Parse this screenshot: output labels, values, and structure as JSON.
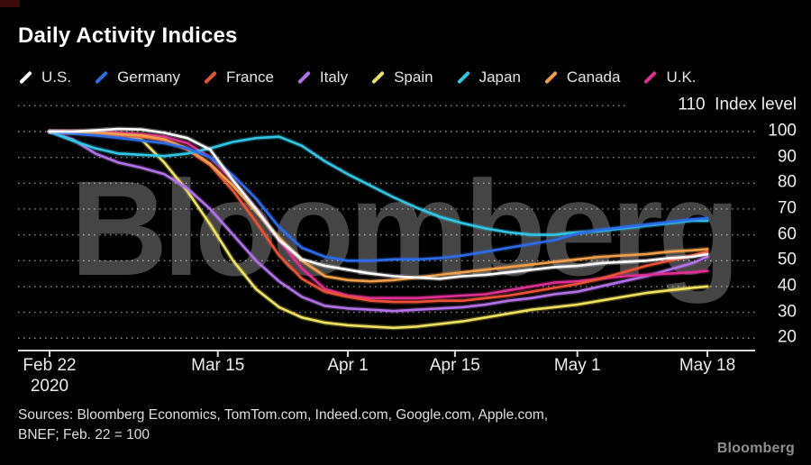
{
  "title": "Daily Activity Indices",
  "watermark": "Bloomberg",
  "brand_logo": "Bloomberg",
  "sources": {
    "line1": "Sources: Bloomberg Economics, TomTom.com, Indeed.com, Google.com, Apple.com,",
    "line2": "BNEF; Feb. 22 = 100"
  },
  "y_axis": {
    "top_tick_value": 110,
    "top_tick_label": "110  Index level",
    "ticks": [
      100,
      90,
      80,
      70,
      60,
      50,
      40,
      30,
      20
    ]
  },
  "x_axis": {
    "ticks": [
      {
        "label": "Feb 22",
        "sublabel": "2020",
        "day": 0
      },
      {
        "label": "Mar 15",
        "day": 22
      },
      {
        "label": "Apr 1",
        "day": 39
      },
      {
        "label": "Apr 15",
        "day": 53
      },
      {
        "label": "May 1",
        "day": 69
      },
      {
        "label": "May 18",
        "day": 86
      }
    ]
  },
  "chart_data": {
    "type": "line",
    "title": "Daily Activity Indices",
    "ylabel": "Index level",
    "baseline_note": "Feb. 22 = 100",
    "x_unit": "days since Feb 22, 2020 (Feb 22 = 0, May 18 = 86)",
    "ylim": [
      20,
      110
    ],
    "grid": "horizontal dotted lines every 10 units",
    "legend_position": "top",
    "days": [
      0,
      3,
      6,
      9,
      12,
      15,
      18,
      21,
      24,
      27,
      30,
      33,
      36,
      39,
      42,
      45,
      48,
      51,
      54,
      57,
      60,
      63,
      66,
      69,
      72,
      75,
      78,
      81,
      84,
      86
    ],
    "series": [
      {
        "name": "U.S.",
        "color": "#ffffff",
        "values": [
          100,
          100,
          100.5,
          101,
          100.8,
          99.5,
          97.5,
          93,
          81,
          70,
          58,
          50.5,
          48,
          46.5,
          45,
          44,
          43.5,
          43,
          44,
          44.5,
          45.5,
          46.5,
          47.5,
          48,
          49,
          49.5,
          50,
          51,
          51.5,
          52.5
        ]
      },
      {
        "name": "Germany",
        "color": "#2e6be6",
        "values": [
          100,
          99.2,
          98.5,
          97.6,
          96.5,
          95.5,
          93.5,
          90,
          83,
          74,
          63,
          55,
          51.5,
          50,
          50,
          50.5,
          50.5,
          51,
          52,
          53.5,
          55,
          56.5,
          58,
          60.5,
          62,
          63,
          64,
          65,
          66,
          66.5
        ]
      },
      {
        "name": "France",
        "color": "#ea5338",
        "values": [
          100,
          99.5,
          99,
          98.5,
          98,
          96.5,
          93,
          87,
          77,
          65,
          52,
          43,
          38,
          36,
          34.5,
          34,
          34,
          34.5,
          34.5,
          35.5,
          36.5,
          38,
          39.5,
          41,
          43,
          45.5,
          48,
          50,
          52,
          53.5
        ]
      },
      {
        "name": "Italy",
        "color": "#b273e8",
        "values": [
          100,
          97,
          91.5,
          88,
          86,
          83.5,
          78,
          70,
          60,
          50,
          42,
          36,
          32.5,
          31.5,
          31,
          30.5,
          31,
          31.5,
          32,
          33,
          34.5,
          35.5,
          37,
          38,
          40,
          42,
          44,
          46.5,
          49,
          51.5
        ]
      },
      {
        "name": "Spain",
        "color": "#efe45f",
        "values": [
          100,
          100,
          99.5,
          99,
          97,
          88,
          77,
          64,
          50,
          39,
          32,
          28,
          26,
          25,
          24.5,
          24,
          24.5,
          25.5,
          26.5,
          28,
          29.5,
          31,
          32,
          33,
          34.5,
          36,
          37.5,
          38.5,
          39.5,
          40
        ]
      },
      {
        "name": "Japan",
        "color": "#31c6e3",
        "values": [
          100,
          96.5,
          93.5,
          91.5,
          91,
          90.5,
          91.5,
          93.5,
          96,
          97.5,
          98,
          94.5,
          88.5,
          83.5,
          79,
          74.5,
          70.5,
          67,
          64.5,
          62.5,
          61,
          60,
          60,
          61,
          61.5,
          62.5,
          63.5,
          64.5,
          65.5,
          65.5
        ]
      },
      {
        "name": "Canada",
        "color": "#f0a04c",
        "values": [
          100,
          99.5,
          99.5,
          99,
          98.5,
          97,
          93.5,
          87.5,
          79,
          69,
          59,
          50,
          44,
          42.5,
          42,
          42.5,
          43.5,
          44.5,
          45.5,
          46.5,
          47.5,
          48.5,
          49.5,
          50.5,
          51.5,
          52,
          52.5,
          53.5,
          54,
          54.5
        ]
      },
      {
        "name": "U.K.",
        "color": "#e02f92",
        "values": [
          100,
          100,
          100,
          99.5,
          99,
          98,
          95.5,
          90,
          81,
          70,
          58,
          47,
          39,
          36.5,
          35.5,
          35.5,
          35.5,
          36,
          36.5,
          37,
          38.5,
          40,
          41.5,
          42,
          43,
          44,
          44.5,
          45,
          45.5,
          46
        ]
      }
    ]
  }
}
